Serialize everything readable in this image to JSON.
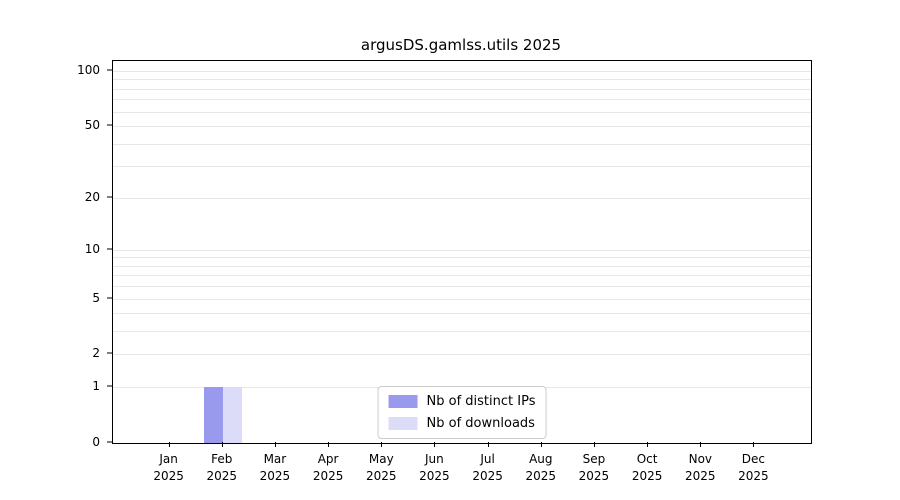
{
  "chart_data": {
    "type": "bar",
    "title": "argusDS.gamlss.utils 2025",
    "categories": [
      "Jan 2025",
      "Feb 2025",
      "Mar 2025",
      "Apr 2025",
      "May 2025",
      "Jun 2025",
      "Jul 2025",
      "Aug 2025",
      "Sep 2025",
      "Oct 2025",
      "Nov 2025",
      "Dec 2025"
    ],
    "series": [
      {
        "name": "Nb of distinct IPs",
        "color": "#9999ee",
        "values": [
          0,
          1,
          0,
          0,
          0,
          0,
          0,
          0,
          0,
          0,
          0,
          0
        ]
      },
      {
        "name": "Nb of downloads",
        "color": "#dcdcf8",
        "values": [
          0,
          1,
          0,
          0,
          0,
          0,
          0,
          0,
          0,
          0,
          0,
          0
        ]
      }
    ],
    "xlabel": "",
    "ylabel": "",
    "y_scale": "log1p",
    "ylim": [
      0,
      100
    ],
    "y_ticks": [
      0,
      1,
      2,
      5,
      10,
      20,
      50,
      100
    ],
    "y_gridlines": [
      1,
      2,
      3,
      4,
      5,
      6,
      7,
      8,
      9,
      10,
      20,
      30,
      40,
      50,
      60,
      70,
      80,
      90,
      100
    ],
    "grid": true,
    "legend_position": "bottom-center-inside"
  }
}
